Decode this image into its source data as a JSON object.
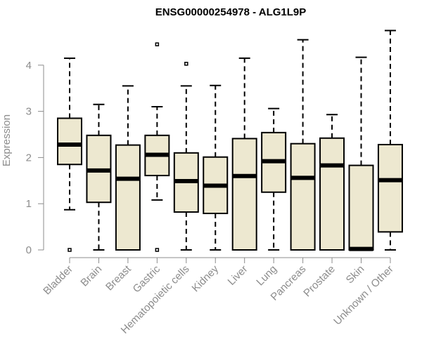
{
  "chart_data": {
    "type": "box",
    "title": "ENSG00000254978 - ALG1L9P",
    "xlabel": "",
    "ylabel": "Expression",
    "ylim": [
      0,
      4.8
    ],
    "yticks": [
      0,
      1,
      2,
      3,
      4
    ],
    "grid": false,
    "legend": "none",
    "box_fill": "#ede8d0",
    "stroke": "#000000",
    "categories": [
      "Bladder",
      "Brain",
      "Breast",
      "Gastric",
      "Hematopoietic cells",
      "Kidney",
      "Liver",
      "Lung",
      "Pancreas",
      "Prostate",
      "Skin",
      "Unknown / Other"
    ],
    "boxes": [
      {
        "min": 0.87,
        "q1": 1.85,
        "median": 2.28,
        "q3": 2.85,
        "max": 4.15,
        "outliers": [
          0
        ]
      },
      {
        "min": 0,
        "q1": 1.03,
        "median": 1.72,
        "q3": 2.48,
        "max": 3.15,
        "outliers": []
      },
      {
        "min": 0,
        "q1": 0,
        "median": 1.54,
        "q3": 2.27,
        "max": 3.55,
        "outliers": []
      },
      {
        "min": 1.08,
        "q1": 1.61,
        "median": 2.06,
        "q3": 2.48,
        "max": 3.1,
        "outliers": [
          4.45,
          0
        ]
      },
      {
        "min": 0,
        "q1": 0.82,
        "median": 1.49,
        "q3": 2.1,
        "max": 3.55,
        "outliers": [
          4.03
        ]
      },
      {
        "min": 0,
        "q1": 0.79,
        "median": 1.39,
        "q3": 2.01,
        "max": 3.56,
        "outliers": []
      },
      {
        "min": 0,
        "q1": 0,
        "median": 1.6,
        "q3": 2.41,
        "max": 4.15,
        "outliers": []
      },
      {
        "min": 0,
        "q1": 1.25,
        "median": 1.92,
        "q3": 2.54,
        "max": 3.06,
        "outliers": []
      },
      {
        "min": 0,
        "q1": 0,
        "median": 1.56,
        "q3": 2.3,
        "max": 4.55,
        "outliers": []
      },
      {
        "min": 0,
        "q1": 0,
        "median": 1.83,
        "q3": 2.42,
        "max": 2.93,
        "outliers": []
      },
      {
        "min": 0,
        "q1": 0,
        "median": 0.02,
        "q3": 1.83,
        "max": 4.17,
        "outliers": []
      },
      {
        "min": 0,
        "q1": 0.39,
        "median": 1.51,
        "q3": 2.28,
        "max": 4.75,
        "outliers": []
      }
    ]
  }
}
